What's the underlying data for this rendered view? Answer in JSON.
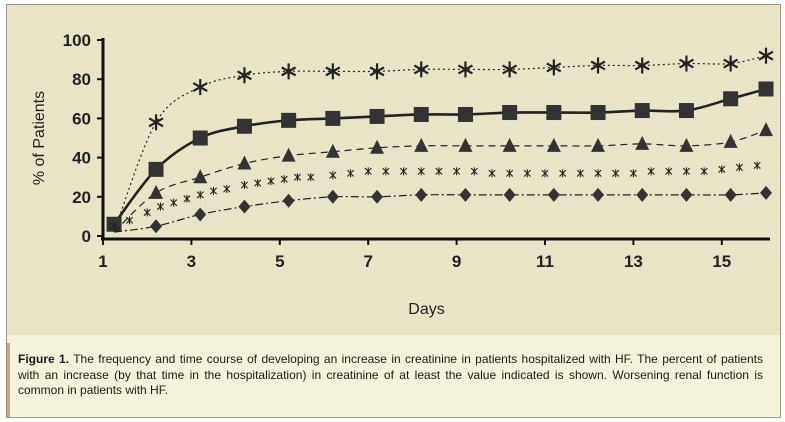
{
  "chart_data": {
    "type": "line",
    "title": "",
    "xlabel": "Days",
    "ylabel": "% of Patients",
    "xlim": [
      1,
      16
    ],
    "ylim": [
      0,
      100
    ],
    "x_ticks": [
      1,
      3,
      5,
      7,
      9,
      11,
      13,
      15
    ],
    "y_ticks": [
      0,
      20,
      40,
      60,
      80,
      100
    ],
    "grid": false,
    "legend": "none",
    "series": [
      {
        "marker": "asterisk",
        "line_style": "dotted",
        "x": [
          2.2,
          3.2,
          4.2,
          5.2,
          6.2,
          7.2,
          8.2,
          9.2,
          10.2,
          11.2,
          12.2,
          13.2,
          14.2,
          15.2,
          16
        ],
        "values": [
          58,
          76,
          82,
          84,
          84,
          84,
          85,
          85,
          85,
          86,
          87,
          87,
          88,
          88,
          92
        ]
      },
      {
        "marker": "square",
        "line_style": "solid",
        "x": [
          1.25,
          2.2,
          3.2,
          4.2,
          5.2,
          6.2,
          7.2,
          8.2,
          9.2,
          10.2,
          11.2,
          12.2,
          13.2,
          14.2,
          15.2,
          16
        ],
        "values": [
          6,
          34,
          50,
          56,
          59,
          60,
          61,
          62,
          62,
          63,
          63,
          63,
          64,
          64,
          70,
          75
        ]
      },
      {
        "marker": "triangle",
        "line_style": "dashed",
        "x": [
          2.2,
          3.2,
          4.2,
          5.2,
          6.2,
          7.2,
          8.2,
          9.2,
          10.2,
          11.2,
          12.2,
          13.2,
          14.2,
          15.2,
          16
        ],
        "values": [
          22,
          30,
          37,
          41,
          43,
          45,
          46,
          46,
          46,
          46,
          46,
          47,
          46,
          48,
          54
        ]
      },
      {
        "marker": "x",
        "line_style": "none",
        "x": [
          1.25,
          1.6,
          2.0,
          2.3,
          2.6,
          2.9,
          3.2,
          3.5,
          3.8,
          4.2,
          4.5,
          4.8,
          5.1,
          5.4,
          5.7,
          6.2,
          6.6,
          7.0,
          7.4,
          7.8,
          8.2,
          8.6,
          9.0,
          9.4,
          9.8,
          10.2,
          10.6,
          11.0,
          11.4,
          11.8,
          12.2,
          12.6,
          13.0,
          13.4,
          13.8,
          14.2,
          14.6,
          15.0,
          15.4,
          15.8
        ],
        "values": [
          5,
          8,
          12,
          15,
          17,
          19,
          21,
          23,
          24,
          26,
          27,
          28,
          29,
          30,
          30,
          31,
          32,
          33,
          33,
          33,
          33,
          33,
          33,
          33,
          32,
          32,
          32,
          32,
          32,
          32,
          32,
          32,
          32,
          33,
          33,
          33,
          33,
          34,
          35,
          36
        ]
      },
      {
        "marker": "diamond",
        "line_style": "dash-dot",
        "x": [
          2.2,
          3.2,
          4.2,
          5.2,
          6.2,
          7.2,
          8.2,
          9.2,
          10.2,
          11.2,
          12.2,
          13.2,
          14.2,
          15.2,
          16
        ],
        "values": [
          5,
          11,
          15,
          18,
          20,
          20,
          21,
          21,
          21,
          21,
          21,
          21,
          21,
          21,
          22
        ]
      }
    ]
  },
  "caption": {
    "label": "Figure 1.",
    "text": " The frequency and time course of developing an increase in creatinine in patients hospitalized with HF. The percent of patients with an increase (by that time in the hospitalization) in creatinine of at least the value indicated is shown. Worsening renal function is common in patients with HF."
  }
}
